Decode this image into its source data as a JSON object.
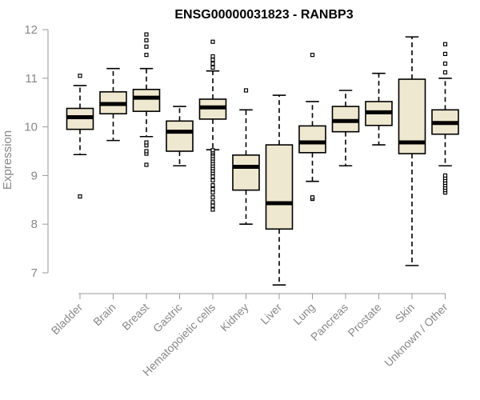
{
  "chart_data": {
    "type": "boxplot",
    "title": "ENSG00000031823 - RANBP3",
    "ylabel": "Expression",
    "ylim": [
      7,
      12
    ],
    "yticks": [
      "7",
      "8",
      "9",
      "10",
      "11",
      "12"
    ],
    "box_fill": "#efe8d0",
    "grid": false,
    "categories": [
      "Bladder",
      "Brain",
      "Breast",
      "Gastric",
      "Hematopoietic cells",
      "Kidney",
      "Liver",
      "Lung",
      "Pancreas",
      "Prostate",
      "Skin",
      "Unknown / Other"
    ],
    "boxes": [
      {
        "min": 9.43,
        "q1": 9.95,
        "median": 10.2,
        "q3": 10.38,
        "max": 10.85,
        "outliers": [
          8.57,
          11.05
        ]
      },
      {
        "min": 9.72,
        "q1": 10.27,
        "median": 10.47,
        "q3": 10.72,
        "max": 11.2,
        "outliers": []
      },
      {
        "min": 9.8,
        "q1": 10.32,
        "median": 10.6,
        "q3": 10.77,
        "max": 11.2,
        "outliers": [
          9.22,
          9.45,
          9.5,
          9.62,
          9.68,
          11.48,
          11.65,
          11.78,
          11.9
        ]
      },
      {
        "min": 9.2,
        "q1": 9.5,
        "median": 9.9,
        "q3": 10.12,
        "max": 10.42,
        "outliers": []
      },
      {
        "min": 9.53,
        "q1": 10.16,
        "median": 10.4,
        "q3": 10.57,
        "max": 11.15,
        "outliers": [
          8.3,
          8.38,
          8.45,
          8.55,
          8.65,
          8.72,
          8.8,
          8.9,
          8.98,
          9.05,
          9.1,
          9.15,
          9.2,
          9.25,
          9.3,
          9.35,
          9.4,
          9.45,
          9.48,
          9.52,
          11.22,
          11.3,
          11.38,
          11.45,
          11.75
        ]
      },
      {
        "min": 8.0,
        "q1": 8.7,
        "median": 9.18,
        "q3": 9.42,
        "max": 10.35,
        "outliers": [
          10.75
        ]
      },
      {
        "min": 6.75,
        "q1": 7.9,
        "median": 8.43,
        "q3": 9.63,
        "max": 10.65,
        "outliers": []
      },
      {
        "min": 8.88,
        "q1": 9.47,
        "median": 9.68,
        "q3": 10.02,
        "max": 10.52,
        "outliers": [
          8.52,
          8.55,
          11.48
        ]
      },
      {
        "min": 9.2,
        "q1": 9.9,
        "median": 10.12,
        "q3": 10.42,
        "max": 10.75,
        "outliers": []
      },
      {
        "min": 9.63,
        "q1": 10.03,
        "median": 10.3,
        "q3": 10.52,
        "max": 11.1,
        "outliers": []
      },
      {
        "min": 7.15,
        "q1": 9.45,
        "median": 9.68,
        "q3": 10.98,
        "max": 11.85,
        "outliers": []
      },
      {
        "min": 9.2,
        "q1": 9.85,
        "median": 10.08,
        "q3": 10.35,
        "max": 11.0,
        "outliers": [
          8.65,
          8.7,
          8.75,
          8.8,
          8.85,
          8.9,
          8.95,
          9.0,
          11.12,
          11.3,
          11.5,
          11.7
        ]
      }
    ]
  }
}
